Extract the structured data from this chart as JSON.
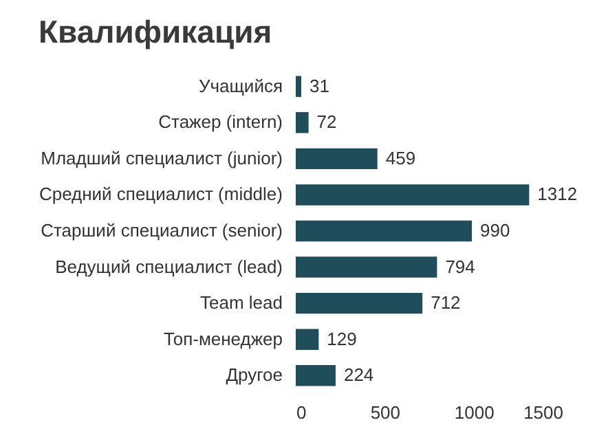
{
  "chart_data": {
    "type": "bar",
    "orientation": "horizontal",
    "title": "Квалификация",
    "categories": [
      "Учащийся",
      "Стажер (intern)",
      "Младший специалист (junior)",
      "Средний специалист (middle)",
      "Старший специалист (senior)",
      "Ведущий специалист (lead)",
      "Team lead",
      "Топ-менеджер",
      "Другое"
    ],
    "values": [
      31,
      72,
      459,
      1312,
      990,
      794,
      712,
      129,
      224
    ],
    "color": "#1f4e5a",
    "xlim": [
      0,
      1500
    ],
    "xticks": [
      0,
      500,
      1000,
      1500
    ],
    "grid": false,
    "data_labels": true
  }
}
